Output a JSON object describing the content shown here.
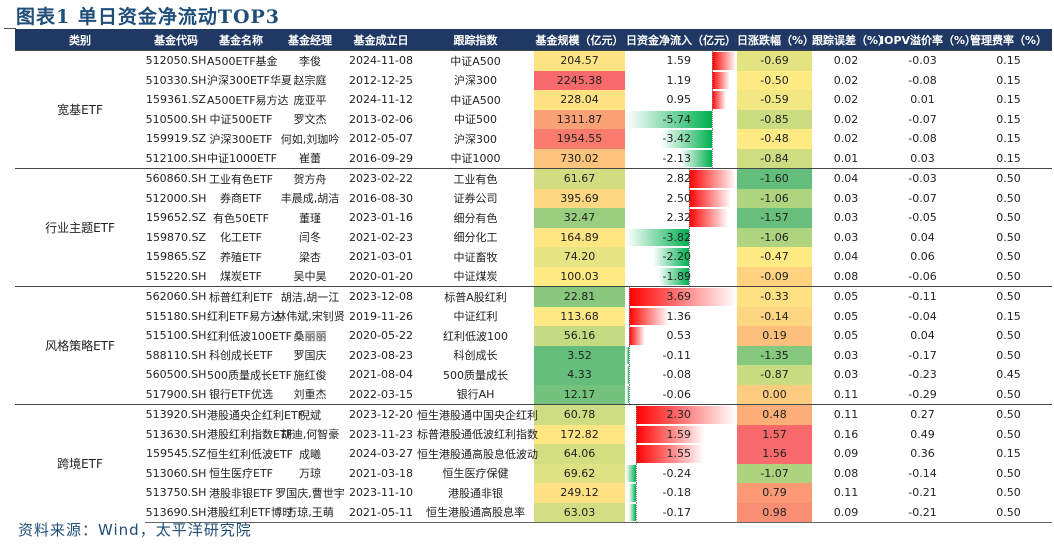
{
  "title": "图表1 单日资金净流动TOP3",
  "headers": [
    "类别",
    "基金代码",
    "基金名称",
    "基金经理",
    "基金成立日",
    "跟踪指数",
    "基金规模（亿元）",
    "日资金净流入（亿元）",
    "日涨跌幅（%）",
    "跟踪误差（%）",
    "IOPV溢价率（%）",
    "管理费率（%）"
  ],
  "colors": {
    "header_bg": "#1f3864",
    "heat_low": "#63be7b",
    "heat_mid": "#ffeb84",
    "heat_high": "#f8696b",
    "bar_pos": "#ff0000",
    "bar_neg": "#00b050"
  },
  "groups": [
    {
      "category": "宽基ETF",
      "rows": [
        {
          "code": "512050.SH",
          "name": "A500ETF基金",
          "manager": "李俊",
          "date": "2024-11-08",
          "index": "中证A500",
          "scale": "204.57",
          "flow": "1.59",
          "change": "-0.69",
          "te": "0.02",
          "iopv": "-0.03",
          "fee": "0.15"
        },
        {
          "code": "510330.SH",
          "name": "沪深300ETF华夏",
          "manager": "赵宗庭",
          "date": "2012-12-25",
          "index": "沪深300",
          "scale": "2245.38",
          "flow": "1.19",
          "change": "-0.50",
          "te": "0.02",
          "iopv": "-0.08",
          "fee": "0.15"
        },
        {
          "code": "159361.SZ",
          "name": "A500ETF易方达",
          "manager": "庞亚平",
          "date": "2024-11-12",
          "index": "中证A500",
          "scale": "228.04",
          "flow": "0.95",
          "change": "-0.59",
          "te": "0.02",
          "iopv": "0.01",
          "fee": "0.15"
        },
        {
          "code": "510500.SH",
          "name": "中证500ETF",
          "manager": "罗文杰",
          "date": "2013-02-06",
          "index": "中证500",
          "scale": "1311.87",
          "flow": "-5.74",
          "change": "-0.85",
          "te": "0.02",
          "iopv": "-0.07",
          "fee": "0.15"
        },
        {
          "code": "159919.SZ",
          "name": "沪深300ETF",
          "manager": "何如,刘珈吟",
          "date": "2012-05-07",
          "index": "沪深300",
          "scale": "1954.55",
          "flow": "-3.42",
          "change": "-0.48",
          "te": "0.02",
          "iopv": "-0.08",
          "fee": "0.15"
        },
        {
          "code": "512100.SH",
          "name": "中证1000ETF",
          "manager": "崔蕾",
          "date": "2016-09-29",
          "index": "中证1000",
          "scale": "730.02",
          "flow": "-2.13",
          "change": "-0.84",
          "te": "0.01",
          "iopv": "0.03",
          "fee": "0.15"
        }
      ]
    },
    {
      "category": "行业主题ETF",
      "rows": [
        {
          "code": "560860.SH",
          "name": "工业有色ETF",
          "manager": "贺方舟",
          "date": "2023-02-22",
          "index": "工业有色",
          "scale": "61.67",
          "flow": "2.82",
          "change": "-1.60",
          "te": "0.04",
          "iopv": "-0.03",
          "fee": "0.50"
        },
        {
          "code": "512000.SH",
          "name": "券商ETF",
          "manager": "丰晨成,胡洁",
          "date": "2016-08-30",
          "index": "证券公司",
          "scale": "395.69",
          "flow": "2.50",
          "change": "-1.06",
          "te": "0.03",
          "iopv": "-0.07",
          "fee": "0.50"
        },
        {
          "code": "159652.SZ",
          "name": "有色50ETF",
          "manager": "董瑾",
          "date": "2023-01-16",
          "index": "细分有色",
          "scale": "32.47",
          "flow": "2.32",
          "change": "-1.57",
          "te": "0.03",
          "iopv": "-0.05",
          "fee": "0.50"
        },
        {
          "code": "159870.SZ",
          "name": "化工ETF",
          "manager": "闫冬",
          "date": "2021-02-23",
          "index": "细分化工",
          "scale": "164.89",
          "flow": "-3.82",
          "change": "-1.06",
          "te": "0.03",
          "iopv": "0.04",
          "fee": "0.50"
        },
        {
          "code": "159865.SZ",
          "name": "养殖ETF",
          "manager": "梁杏",
          "date": "2021-03-01",
          "index": "中证畜牧",
          "scale": "74.20",
          "flow": "-2.20",
          "change": "-0.47",
          "te": "0.04",
          "iopv": "0.06",
          "fee": "0.50"
        },
        {
          "code": "515220.SH",
          "name": "煤炭ETF",
          "manager": "吴中昊",
          "date": "2020-01-20",
          "index": "中证煤炭",
          "scale": "100.03",
          "flow": "-1.89",
          "change": "-0.09",
          "te": "0.08",
          "iopv": "-0.06",
          "fee": "0.50"
        }
      ]
    },
    {
      "category": "风格策略ETF",
      "rows": [
        {
          "code": "562060.SH",
          "name": "标普红利ETF",
          "manager": "胡洁,胡一江",
          "date": "2023-12-08",
          "index": "标普A股红利",
          "scale": "22.81",
          "flow": "3.69",
          "change": "-0.33",
          "te": "0.05",
          "iopv": "-0.11",
          "fee": "0.50"
        },
        {
          "code": "515180.SH",
          "name": "红利ETF易方达",
          "manager": "林伟斌,宋钊贤",
          "date": "2019-11-26",
          "index": "中证红利",
          "scale": "113.68",
          "flow": "1.36",
          "change": "-0.14",
          "te": "0.05",
          "iopv": "-0.04",
          "fee": "0.15"
        },
        {
          "code": "515100.SH",
          "name": "红利低波100ETF",
          "manager": "桑丽丽",
          "date": "2020-05-22",
          "index": "红利低波100",
          "scale": "56.16",
          "flow": "0.53",
          "change": "0.19",
          "te": "0.05",
          "iopv": "0.04",
          "fee": "0.50"
        },
        {
          "code": "588110.SH",
          "name": "科创成长ETF",
          "manager": "罗国庆",
          "date": "2023-08-23",
          "index": "科创成长",
          "scale": "3.52",
          "flow": "-0.11",
          "change": "-1.35",
          "te": "0.03",
          "iopv": "-0.17",
          "fee": "0.50"
        },
        {
          "code": "560500.SH",
          "name": "500质量成长ETF",
          "manager": "施红俊",
          "date": "2021-08-04",
          "index": "500质量成长",
          "scale": "4.33",
          "flow": "-0.08",
          "change": "-0.87",
          "te": "0.03",
          "iopv": "-0.23",
          "fee": "0.45"
        },
        {
          "code": "517900.SH",
          "name": "银行ETF优选",
          "manager": "刘重杰",
          "date": "2022-03-15",
          "index": "银行AH",
          "scale": "12.17",
          "flow": "-0.06",
          "change": "0.00",
          "te": "0.11",
          "iopv": "-0.29",
          "fee": "0.50"
        }
      ]
    },
    {
      "category": "跨境ETF",
      "rows": [
        {
          "code": "513920.SH",
          "name": "港股通央企红利ETF",
          "manager": "倪斌",
          "date": "2023-12-20",
          "index": "恒生港股通中国央企红利",
          "scale": "60.78",
          "flow": "2.30",
          "change": "0.48",
          "te": "0.11",
          "iopv": "0.27",
          "fee": "0.50"
        },
        {
          "code": "513630.SH",
          "name": "港股红利指数ETF",
          "manager": "胡迪,何智豪",
          "date": "2023-11-23",
          "index": "标普港股通低波红利指数",
          "scale": "172.82",
          "flow": "1.59",
          "change": "1.57",
          "te": "0.16",
          "iopv": "0.49",
          "fee": "0.50"
        },
        {
          "code": "159545.SZ",
          "name": "恒生红利低波ETF",
          "manager": "成曦",
          "date": "2024-03-27",
          "index": "恒生港股通高股息低波动",
          "scale": "64.06",
          "flow": "1.55",
          "change": "1.56",
          "te": "0.09",
          "iopv": "0.36",
          "fee": "0.15"
        },
        {
          "code": "513060.SH",
          "name": "恒生医疗ETF",
          "manager": "万琼",
          "date": "2021-03-18",
          "index": "恒生医疗保健",
          "scale": "69.62",
          "flow": "-0.24",
          "change": "-1.07",
          "te": "0.08",
          "iopv": "-0.14",
          "fee": "0.50"
        },
        {
          "code": "513750.SH",
          "name": "港股非银ETF",
          "manager": "罗国庆,曹世宇",
          "date": "2023-11-10",
          "index": "港股通非银",
          "scale": "249.12",
          "flow": "-0.18",
          "change": "0.79",
          "te": "0.11",
          "iopv": "-0.21",
          "fee": "0.50"
        },
        {
          "code": "513690.SH",
          "name": "港股红利ETF博时",
          "manager": "万琼,王萌",
          "date": "2021-05-11",
          "index": "恒生港股通高股息率",
          "scale": "63.03",
          "flow": "-0.17",
          "change": "0.98",
          "te": "0.09",
          "iopv": "-0.21",
          "fee": "0.50"
        }
      ]
    }
  ],
  "source": "资料来源：Wind，太平洋研究院"
}
